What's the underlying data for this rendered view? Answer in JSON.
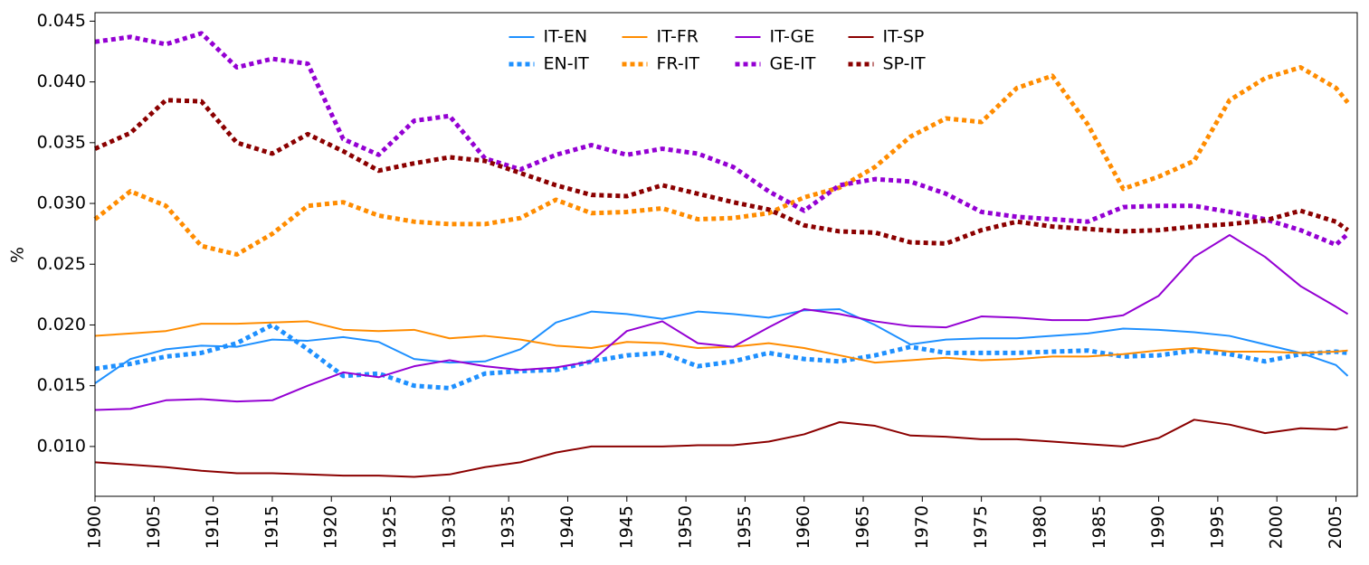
{
  "chart_data": {
    "type": "line",
    "ylabel": "%",
    "x": [
      1900,
      1903,
      1906,
      1909,
      1912,
      1915,
      1918,
      1921,
      1924,
      1927,
      1930,
      1933,
      1936,
      1939,
      1942,
      1945,
      1948,
      1951,
      1954,
      1957,
      1960,
      1963,
      1966,
      1969,
      1972,
      1975,
      1978,
      1981,
      1984,
      1987,
      1990,
      1993,
      1996,
      1999,
      2002,
      2005,
      2006
    ],
    "xlim": [
      1900,
      2006.8
    ],
    "xticks": [
      1900,
      1905,
      1910,
      1915,
      1920,
      1925,
      1930,
      1935,
      1940,
      1945,
      1950,
      1955,
      1960,
      1965,
      1970,
      1975,
      1980,
      1985,
      1990,
      1995,
      2000,
      2005
    ],
    "ylim": [
      0.0059,
      0.0457
    ],
    "yticks": [
      {
        "value": 0.01,
        "label": "0.010"
      },
      0.015,
      {
        "value": 0.02,
        "label": "0.020"
      },
      0.025,
      {
        "value": 0.03,
        "label": "0.030"
      },
      0.035,
      {
        "value": 0.04,
        "label": "0.040"
      },
      0.045
    ],
    "legend": "upper center",
    "legend_columns": 4,
    "series": [
      {
        "name": "IT-EN",
        "color": "#1e90ff",
        "style": "solid",
        "values": [
          0.0152,
          0.0172,
          0.018,
          0.0183,
          0.0182,
          0.0188,
          0.0187,
          0.019,
          0.0186,
          0.0172,
          0.0169,
          0.017,
          0.018,
          0.0202,
          0.0211,
          0.0209,
          0.0205,
          0.0211,
          0.0209,
          0.0206,
          0.0212,
          0.0213,
          0.02,
          0.0184,
          0.0188,
          0.0189,
          0.0189,
          0.0191,
          0.0193,
          0.0197,
          0.0196,
          0.0194,
          0.0191,
          0.0184,
          0.0177,
          0.0167,
          0.0158
        ]
      },
      {
        "name": "EN-IT",
        "color": "#1e90ff",
        "style": "dotted",
        "values": [
          0.0164,
          0.0168,
          0.0174,
          0.0177,
          0.0185,
          0.02,
          0.018,
          0.0158,
          0.016,
          0.015,
          0.0148,
          0.016,
          0.0162,
          0.0163,
          0.017,
          0.0175,
          0.0177,
          0.0166,
          0.017,
          0.0177,
          0.0172,
          0.017,
          0.0175,
          0.0182,
          0.0177,
          0.0177,
          0.0177,
          0.0178,
          0.0179,
          0.0174,
          0.0175,
          0.0179,
          0.0176,
          0.017,
          0.0176,
          0.0178,
          0.0177
        ]
      },
      {
        "name": "IT-FR",
        "color": "#ff8c00",
        "style": "solid",
        "values": [
          0.0191,
          0.0193,
          0.0195,
          0.0201,
          0.0201,
          0.0202,
          0.0203,
          0.0196,
          0.0195,
          0.0196,
          0.0189,
          0.0191,
          0.0188,
          0.0183,
          0.0181,
          0.0186,
          0.0185,
          0.0181,
          0.0182,
          0.0185,
          0.0181,
          0.0175,
          0.0169,
          0.0171,
          0.0173,
          0.0171,
          0.0172,
          0.0174,
          0.0174,
          0.0176,
          0.0179,
          0.0181,
          0.0178,
          0.0178,
          0.0177,
          0.0178,
          0.0179
        ]
      },
      {
        "name": "FR-IT",
        "color": "#ff8c00",
        "style": "dotted",
        "values": [
          0.0287,
          0.031,
          0.0298,
          0.0265,
          0.0258,
          0.0275,
          0.0298,
          0.0301,
          0.029,
          0.0285,
          0.0283,
          0.0283,
          0.0288,
          0.0303,
          0.0292,
          0.0293,
          0.0296,
          0.0287,
          0.0288,
          0.0292,
          0.0305,
          0.0313,
          0.033,
          0.0355,
          0.037,
          0.0367,
          0.0395,
          0.0405,
          0.0365,
          0.0312,
          0.0322,
          0.0335,
          0.0385,
          0.0403,
          0.0412,
          0.0395,
          0.0383
        ]
      },
      {
        "name": "IT-GE",
        "color": "#9400d3",
        "style": "solid",
        "values": [
          0.013,
          0.0131,
          0.0138,
          0.0139,
          0.0137,
          0.0138,
          0.015,
          0.0161,
          0.0157,
          0.0166,
          0.0171,
          0.0166,
          0.0163,
          0.0165,
          0.017,
          0.0195,
          0.0203,
          0.0185,
          0.0182,
          0.0198,
          0.0213,
          0.0209,
          0.0203,
          0.0199,
          0.0198,
          0.0207,
          0.0206,
          0.0204,
          0.0204,
          0.0208,
          0.0224,
          0.0256,
          0.0274,
          0.0256,
          0.0232,
          0.0215,
          0.0209
        ]
      },
      {
        "name": "GE-IT",
        "color": "#9400d3",
        "style": "dotted",
        "values": [
          0.0433,
          0.0437,
          0.0431,
          0.044,
          0.0412,
          0.0419,
          0.0415,
          0.0353,
          0.034,
          0.0368,
          0.0372,
          0.0337,
          0.0328,
          0.034,
          0.0348,
          0.034,
          0.0345,
          0.0341,
          0.033,
          0.031,
          0.0294,
          0.0315,
          0.032,
          0.0318,
          0.0308,
          0.0293,
          0.0289,
          0.0287,
          0.0285,
          0.0297,
          0.0298,
          0.0298,
          0.0293,
          0.0287,
          0.0278,
          0.0266,
          0.0275
        ]
      },
      {
        "name": "IT-SP",
        "color": "#8b0000",
        "style": "solid",
        "values": [
          0.0087,
          0.0085,
          0.0083,
          0.008,
          0.0078,
          0.0078,
          0.0077,
          0.0076,
          0.0076,
          0.0075,
          0.0077,
          0.0083,
          0.0087,
          0.0095,
          0.01,
          0.01,
          0.01,
          0.0101,
          0.0101,
          0.0104,
          0.011,
          0.012,
          0.0117,
          0.0109,
          0.0108,
          0.0106,
          0.0106,
          0.0104,
          0.0102,
          0.01,
          0.0107,
          0.0122,
          0.0118,
          0.0111,
          0.0115,
          0.0114,
          0.0116
        ]
      },
      {
        "name": "SP-IT",
        "color": "#8b0000",
        "style": "dotted",
        "values": [
          0.0345,
          0.0358,
          0.0385,
          0.0384,
          0.035,
          0.0341,
          0.0357,
          0.0343,
          0.0327,
          0.0333,
          0.0338,
          0.0335,
          0.0325,
          0.0315,
          0.0307,
          0.0306,
          0.0315,
          0.0308,
          0.0301,
          0.0295,
          0.0282,
          0.0277,
          0.0276,
          0.0268,
          0.0267,
          0.0278,
          0.0285,
          0.0281,
          0.0279,
          0.0277,
          0.0278,
          0.0281,
          0.0283,
          0.0286,
          0.0294,
          0.0285,
          0.0278
        ]
      }
    ]
  }
}
